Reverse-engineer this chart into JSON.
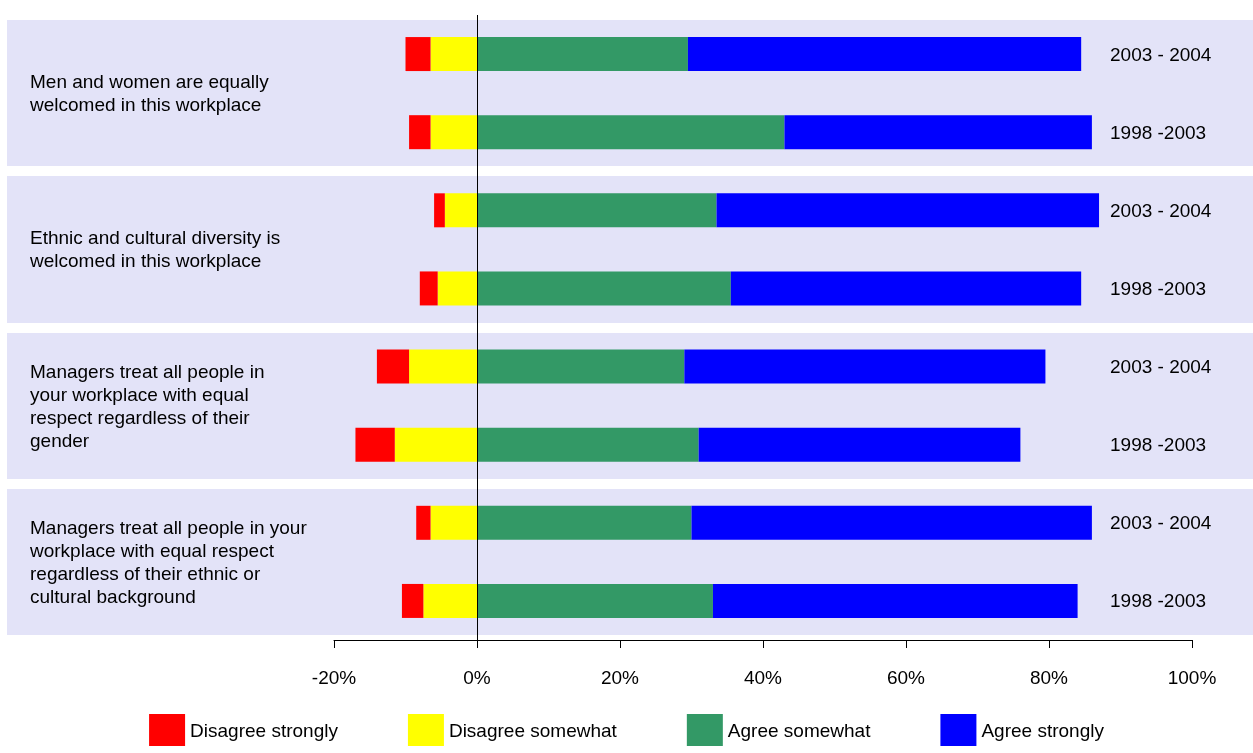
{
  "chart_data": {
    "type": "bar",
    "orientation": "horizontal",
    "stacked": true,
    "categories": [
      "2003 - 2004",
      "1998 -2003",
      "2003 - 2004",
      "1998 -2003",
      "2003 - 2004",
      "1998 -2003",
      "2003 - 2004",
      "1998 -2003"
    ],
    "series": [
      {
        "name": "Disagree somewhat",
        "color": "#ffff00",
        "values": [
          -6.5,
          -6.5,
          -4.5,
          -5.5,
          -9.5,
          -11.5,
          -6.5,
          -7.5
        ]
      },
      {
        "name": "Disagree strongly",
        "color": "#ff0000",
        "values": [
          -3.5,
          -3,
          -1.5,
          -2.5,
          -4.5,
          -5.5,
          -2,
          -3
        ]
      },
      {
        "name": "Agree somewhat",
        "color": "#339966",
        "values": [
          29.5,
          43,
          33.5,
          35.5,
          29,
          31,
          30,
          33
        ]
      },
      {
        "name": "Agree strongly",
        "color": "#0000ff",
        "values": [
          55,
          43,
          53.5,
          49,
          50.5,
          45,
          56,
          51
        ]
      }
    ],
    "xlim": [
      -20,
      100
    ],
    "xticks": [
      {
        "value": -20,
        "label": "-20%"
      },
      {
        "value": 0,
        "label": "0%"
      },
      {
        "value": 20,
        "label": "20%"
      },
      {
        "value": 40,
        "label": "40%"
      },
      {
        "value": 60,
        "label": "60%"
      },
      {
        "value": 80,
        "label": "80%"
      },
      {
        "value": 100,
        "label": "100%"
      }
    ],
    "ref_lines": [
      {
        "axis": "x",
        "value": 0,
        "color": "#000000"
      }
    ],
    "annotations": [
      "Men and women are equally\nwelcomed in this workplace",
      "Ethnic and cultural diversity is\nwelcomed in this workplace",
      "Managers treat all people in\nyour workplace with equal\nrespect regardless of their\ngender",
      "Managers treat all people in your\nworkplace with equal respect\nregardless of their ethnic or\ncultural background"
    ],
    "grid": false,
    "legend": "bottom"
  }
}
